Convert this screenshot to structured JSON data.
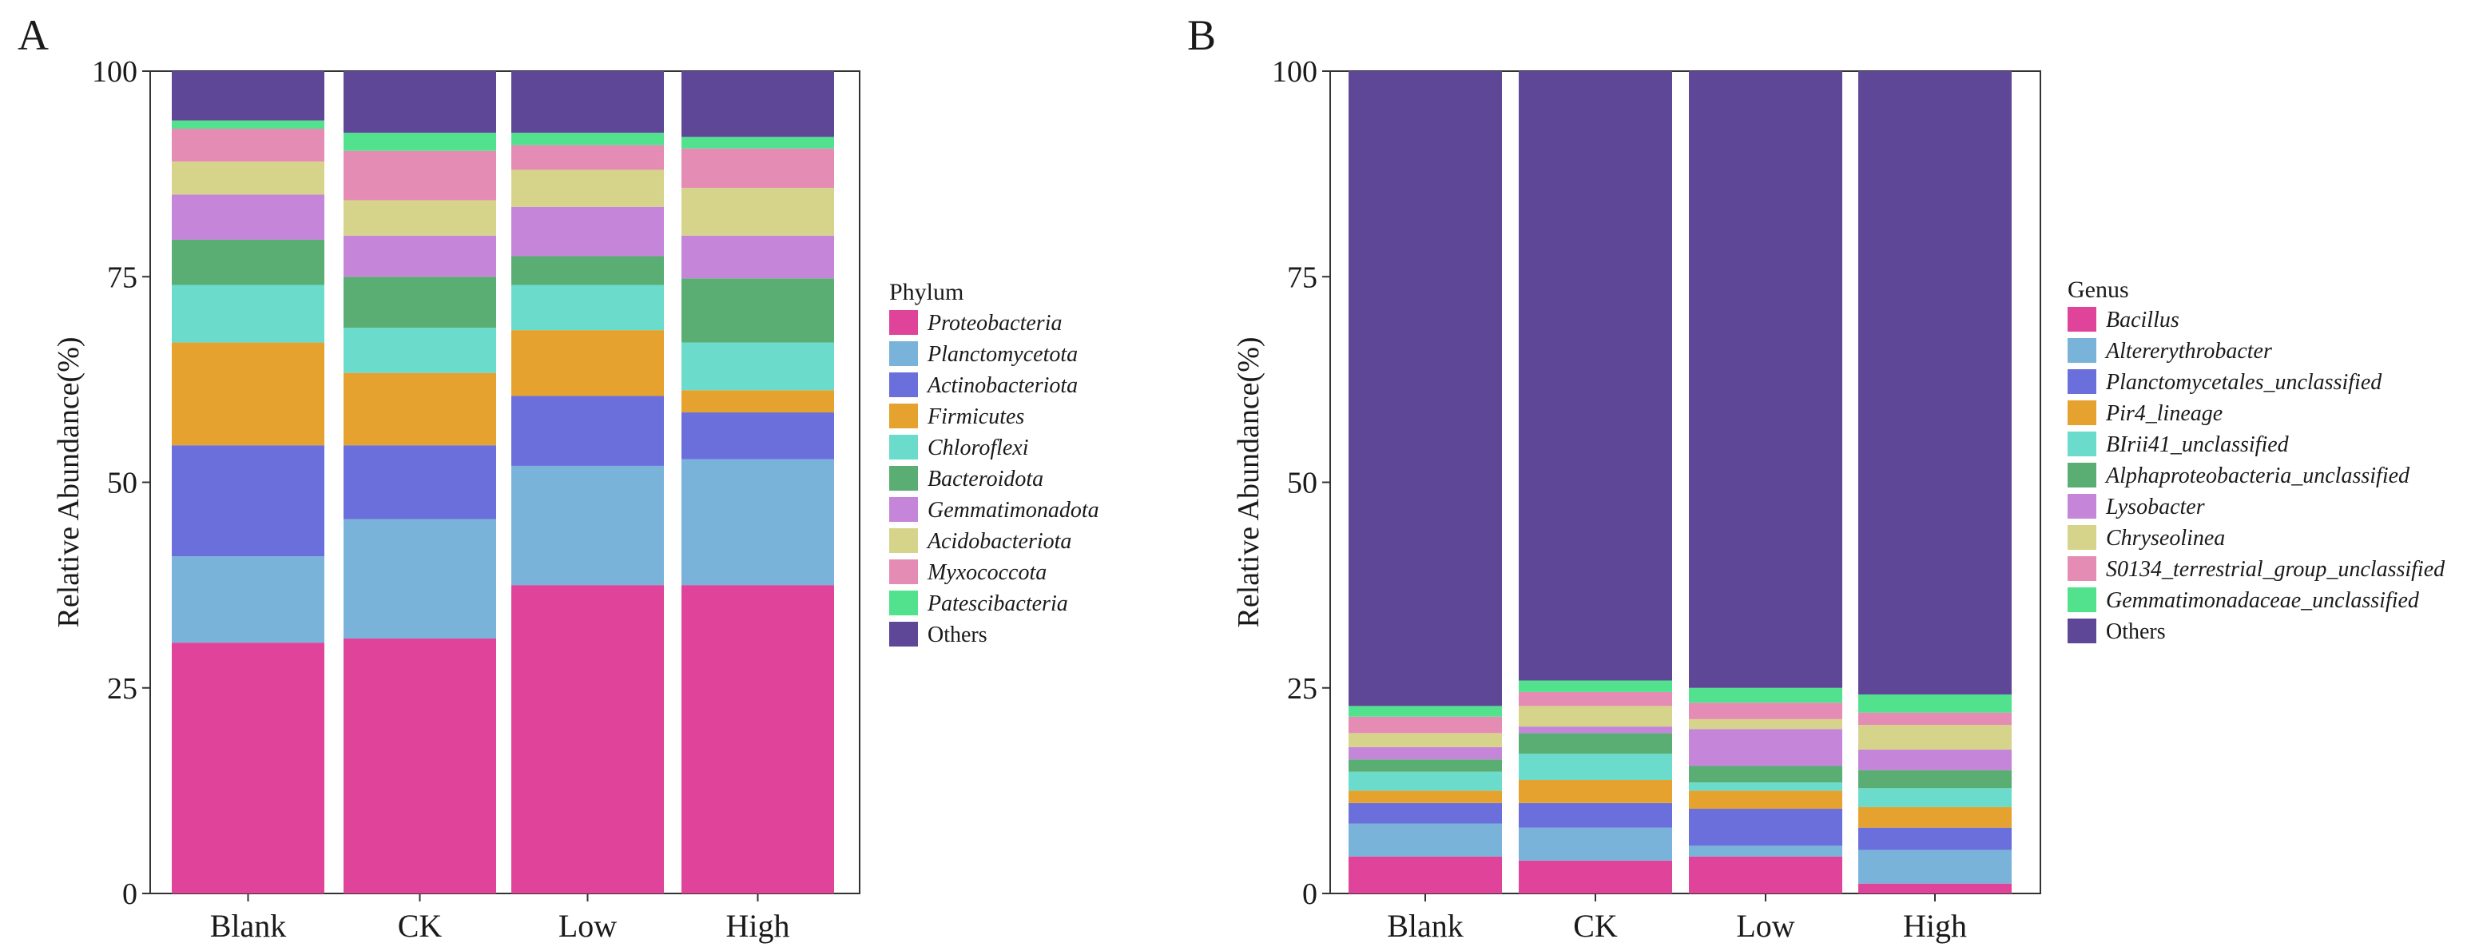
{
  "chart_data": [
    {
      "type": "bar",
      "stacked": true,
      "panel_label": "A",
      "ylabel": "Relative Abundance(%)",
      "ylim": [
        0,
        100
      ],
      "yticks": [
        "0",
        "25",
        "50",
        "75",
        "100"
      ],
      "categories": [
        "Blank",
        "CK",
        "Low",
        "High"
      ],
      "legend_title": "Phylum",
      "legend_position": "right",
      "series": [
        {
          "name": "Proteobacteria",
          "color": "#e0449a",
          "italic": true,
          "values": [
            30.5,
            31.0,
            37.5,
            37.5
          ]
        },
        {
          "name": "Planctomycetota",
          "color": "#7ab3da",
          "italic": true,
          "values": [
            10.5,
            14.5,
            14.5,
            15.3
          ]
        },
        {
          "name": "Actinobacteriota",
          "color": "#6b6fdc",
          "italic": true,
          "values": [
            13.5,
            9.0,
            8.5,
            5.7
          ]
        },
        {
          "name": "Firmicutes",
          "color": "#e6a22e",
          "italic": true,
          "values": [
            12.5,
            8.8,
            8.0,
            2.7
          ]
        },
        {
          "name": "Chloroflexi",
          "color": "#6bdccc",
          "italic": true,
          "values": [
            7.0,
            5.5,
            5.5,
            5.8
          ]
        },
        {
          "name": "Bacteroidota",
          "color": "#5aae73",
          "italic": true,
          "values": [
            5.5,
            6.2,
            3.5,
            7.8
          ]
        },
        {
          "name": "Gemmatimonadota",
          "color": "#c586da",
          "italic": true,
          "values": [
            5.5,
            5.0,
            6.0,
            5.2
          ]
        },
        {
          "name": "Acidobacteriota",
          "color": "#d6d48a",
          "italic": true,
          "values": [
            4.0,
            4.3,
            4.5,
            5.8
          ]
        },
        {
          "name": "Myxococcota",
          "color": "#e48cb4",
          "italic": true,
          "values": [
            4.0,
            6.0,
            3.0,
            4.8
          ]
        },
        {
          "name": "Patescibacteria",
          "color": "#52e28e",
          "italic": true,
          "values": [
            1.0,
            2.2,
            1.5,
            1.4
          ]
        },
        {
          "name": "Others",
          "color": "#5e4796",
          "italic": false,
          "values": [
            6.0,
            7.5,
            7.5,
            8.0
          ]
        }
      ]
    },
    {
      "type": "bar",
      "stacked": true,
      "panel_label": "B",
      "ylabel": "Relative Abundance(%)",
      "ylim": [
        0,
        100
      ],
      "yticks": [
        "0",
        "25",
        "50",
        "75",
        "100"
      ],
      "categories": [
        "Blank",
        "CK",
        "Low",
        "High"
      ],
      "legend_title": "Genus",
      "legend_position": "right",
      "series": [
        {
          "name": "Bacillus",
          "color": "#e0449a",
          "italic": true,
          "values": [
            4.5,
            4.0,
            4.5,
            1.2
          ]
        },
        {
          "name": "Altererythrobacter",
          "color": "#7ab3da",
          "italic": true,
          "values": [
            4.0,
            4.0,
            1.3,
            4.1
          ]
        },
        {
          "name": "Planctomycetales_unclassified",
          "color": "#6b6fdc",
          "italic": true,
          "values": [
            2.5,
            3.0,
            4.5,
            2.7
          ]
        },
        {
          "name": "Pir4_lineage",
          "color": "#e6a22e",
          "italic": true,
          "values": [
            1.5,
            2.8,
            2.2,
            2.5
          ]
        },
        {
          "name": "BIrii41_unclassified",
          "color": "#6bdccc",
          "italic": true,
          "values": [
            2.3,
            3.2,
            1.0,
            2.3
          ]
        },
        {
          "name": "Alphaproteobacteria_unclassified",
          "color": "#5aae73",
          "italic": true,
          "values": [
            1.5,
            2.5,
            2.0,
            2.2
          ]
        },
        {
          "name": "Lysobacter",
          "color": "#c586da",
          "italic": true,
          "values": [
            1.5,
            0.8,
            4.5,
            2.5
          ]
        },
        {
          "name": "Chryseolinea",
          "color": "#d6d48a",
          "italic": true,
          "values": [
            1.7,
            2.5,
            1.2,
            3.0
          ]
        },
        {
          "name": "S0134_terrestrial_group_unclassified",
          "color": "#e48cb4",
          "italic": true,
          "values": [
            2.0,
            1.7,
            2.0,
            1.5
          ]
        },
        {
          "name": "Gemmatimonadaceae_unclassified",
          "color": "#52e28e",
          "italic": true,
          "values": [
            1.3,
            1.4,
            1.8,
            2.2
          ]
        },
        {
          "name": "Others",
          "color": "#5e4796",
          "italic": false,
          "values": [
            77.2,
            74.1,
            75.0,
            75.8
          ]
        }
      ]
    }
  ]
}
